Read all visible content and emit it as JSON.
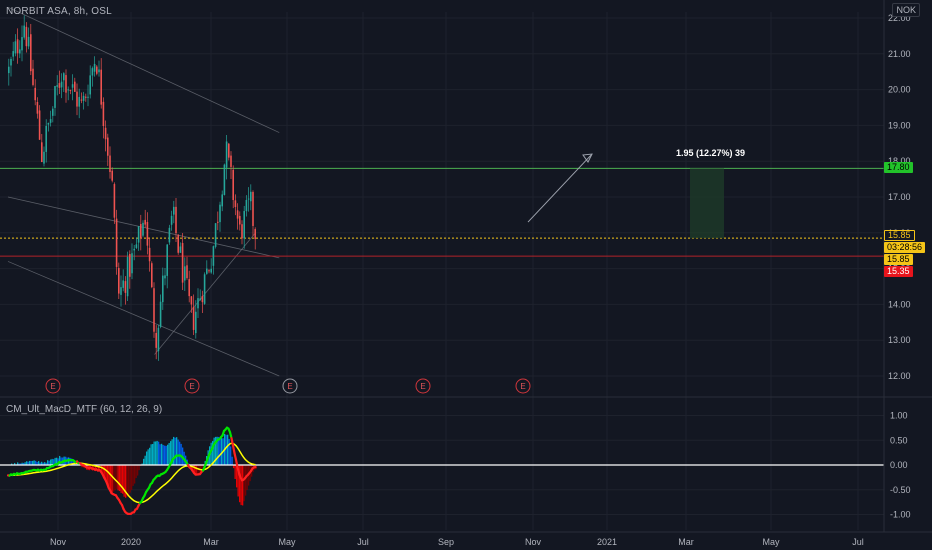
{
  "header": {
    "symbol_line": "NORBIT ASA, 8h, OSL"
  },
  "currency_badge": "NOK",
  "indicator": {
    "title": "CM_Ult_MacD_MTF (60, 12, 26, 9)"
  },
  "measure_label": "1.95 (12.27%) 39",
  "price_tags": {
    "top_green": "17.80",
    "yellow_1": "15.85",
    "countdown": "03:28:56",
    "yellow_2": "15.85",
    "red": "15.35"
  },
  "earnings_marker": "E",
  "colors": {
    "background": "#131722",
    "up": "#26a69a",
    "down": "#ef5350",
    "green_line": "#4caf50",
    "yellow_line": "#f5c518",
    "red_line": "#b2222a",
    "macd_green": "#00e600",
    "macd_red": "#ff2020",
    "signal_yellow": "#ffff00"
  },
  "chart_data": [
    {
      "type": "candlestick",
      "title": "NORBIT ASA, 8h, OSL",
      "x_tick_labels": [
        "Nov",
        "2020",
        "Mar",
        "May",
        "Jul",
        "Sep",
        "Nov",
        "2021",
        "Mar",
        "May",
        "Jul"
      ],
      "y_tick_labels": [
        "22.00",
        "21.00",
        "20.00",
        "19.00",
        "18.00",
        "17.00",
        "16.00",
        "15.00",
        "14.00",
        "13.00",
        "12.00"
      ],
      "ylim": [
        11.6,
        22.3
      ],
      "approx_close_path": [
        {
          "x": "2019-10-01",
          "y": 20.5
        },
        {
          "x": "2019-10-25",
          "y": 21.9
        },
        {
          "x": "2019-11-20",
          "y": 18.2
        },
        {
          "x": "2019-12-20",
          "y": 20.5
        },
        {
          "x": "2020-01-20",
          "y": 19.5
        },
        {
          "x": "2020-02-10",
          "y": 21.0
        },
        {
          "x": "2020-03-05",
          "y": 17.5
        },
        {
          "x": "2020-03-15",
          "y": 14.2
        },
        {
          "x": "2020-04-10",
          "y": 15.5
        },
        {
          "x": "2020-04-25",
          "y": 16.5
        },
        {
          "x": "2020-05-10",
          "y": 13.0
        },
        {
          "x": "2020-06-05",
          "y": 16.5
        },
        {
          "x": "2020-07-05",
          "y": 13.5
        },
        {
          "x": "2020-08-05",
          "y": 15.5
        },
        {
          "x": "2020-08-25",
          "y": 18.3
        },
        {
          "x": "2020-09-15",
          "y": 16.0
        },
        {
          "x": "2020-10-01",
          "y": 16.8
        },
        {
          "x": "2020-10-10",
          "y": 15.85
        }
      ],
      "horizontal_levels": [
        {
          "label": "17.80",
          "value": 17.8,
          "color": "green"
        },
        {
          "label": "15.85",
          "value": 15.85,
          "color": "yellow"
        },
        {
          "label": "15.35",
          "value": 15.35,
          "color": "red"
        }
      ],
      "earnings_markers": 5
    },
    {
      "type": "histogram+line",
      "title": "CM_Ult_MacD_MTF (60, 12, 26, 9)",
      "y_tick_labels": [
        "1.00",
        "0.50",
        "0.00",
        "-0.50",
        "-1.00"
      ],
      "ylim": [
        -1.15,
        1.15
      ],
      "macd_path": [
        {
          "x": "2019-10-01",
          "y": -0.2
        },
        {
          "x": "2019-11-20",
          "y": -0.1
        },
        {
          "x": "2020-01-01",
          "y": 0.1
        },
        {
          "x": "2020-02-15",
          "y": -0.1
        },
        {
          "x": "2020-03-10",
          "y": -0.6
        },
        {
          "x": "2020-04-01",
          "y": -1.0
        },
        {
          "x": "2020-05-20",
          "y": -0.2
        },
        {
          "x": "2020-06-15",
          "y": 0.2
        },
        {
          "x": "2020-07-15",
          "y": -0.2
        },
        {
          "x": "2020-08-15",
          "y": 0.5
        },
        {
          "x": "2020-08-28",
          "y": 0.75
        },
        {
          "x": "2020-09-20",
          "y": -0.3
        },
        {
          "x": "2020-10-10",
          "y": -0.05
        }
      ]
    }
  ]
}
